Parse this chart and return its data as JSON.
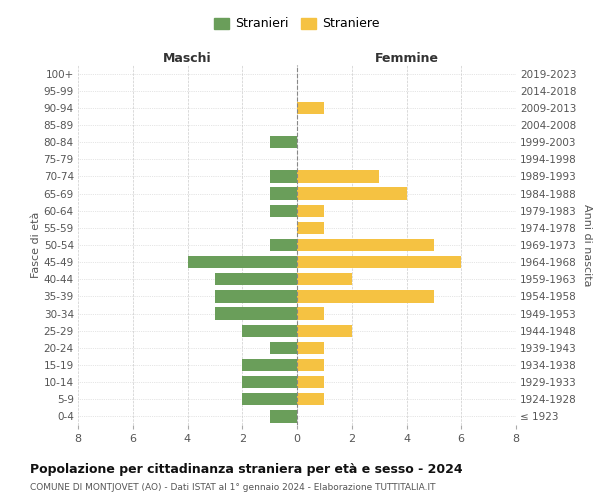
{
  "age_groups": [
    "100+",
    "95-99",
    "90-94",
    "85-89",
    "80-84",
    "75-79",
    "70-74",
    "65-69",
    "60-64",
    "55-59",
    "50-54",
    "45-49",
    "40-44",
    "35-39",
    "30-34",
    "25-29",
    "20-24",
    "15-19",
    "10-14",
    "5-9",
    "0-4"
  ],
  "birth_years": [
    "≤ 1923",
    "1924-1928",
    "1929-1933",
    "1934-1938",
    "1939-1943",
    "1944-1948",
    "1949-1953",
    "1954-1958",
    "1959-1963",
    "1964-1968",
    "1969-1973",
    "1974-1978",
    "1979-1983",
    "1984-1988",
    "1989-1993",
    "1994-1998",
    "1999-2003",
    "2004-2008",
    "2009-2013",
    "2014-2018",
    "2019-2023"
  ],
  "maschi": [
    0,
    0,
    0,
    0,
    1,
    0,
    1,
    1,
    1,
    0,
    1,
    4,
    3,
    3,
    3,
    2,
    1,
    2,
    2,
    2,
    1
  ],
  "femmine": [
    0,
    0,
    1,
    0,
    0,
    0,
    3,
    4,
    1,
    1,
    5,
    6,
    2,
    5,
    1,
    2,
    1,
    1,
    1,
    1,
    0
  ],
  "maschi_color": "#6a9e5a",
  "femmine_color": "#f5c242",
  "title": "Popolazione per cittadinanza straniera per età e sesso - 2024",
  "subtitle": "COMUNE DI MONTJOVET (AO) - Dati ISTAT al 1° gennaio 2024 - Elaborazione TUTTITALIA.IT",
  "ylabel_left": "Fasce di età",
  "ylabel_right": "Anni di nascita",
  "xlabel_maschi": "Maschi",
  "xlabel_femmine": "Femmine",
  "legend_stranieri": "Stranieri",
  "legend_straniere": "Straniere",
  "xlim": 8,
  "background_color": "#ffffff",
  "grid_color": "#cccccc"
}
